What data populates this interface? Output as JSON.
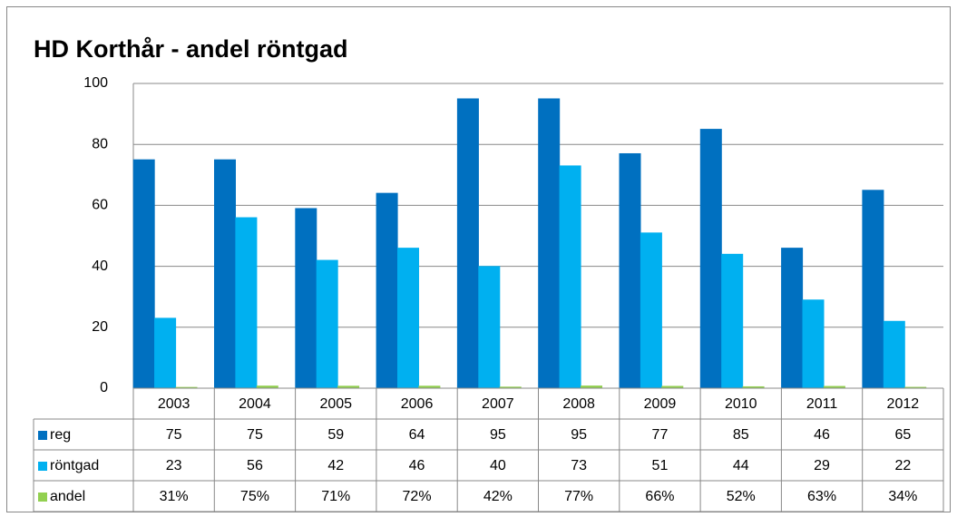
{
  "chart_data": {
    "type": "bar",
    "title": "HD Korthår - andel röntgad",
    "categories": [
      "2003",
      "2004",
      "2005",
      "2006",
      "2007",
      "2008",
      "2009",
      "2010",
      "2011",
      "2012"
    ],
    "series": [
      {
        "name": "reg",
        "color": "#0070c0",
        "values": [
          75,
          75,
          59,
          64,
          95,
          95,
          77,
          85,
          46,
          65
        ]
      },
      {
        "name": "röntgad",
        "color": "#00b0f0",
        "values": [
          23,
          56,
          42,
          46,
          40,
          73,
          51,
          44,
          29,
          22
        ]
      },
      {
        "name": "andel",
        "color": "#92d050",
        "values": [
          0.31,
          0.75,
          0.71,
          0.72,
          0.42,
          0.77,
          0.66,
          0.52,
          0.63,
          0.34
        ],
        "value_labels": [
          "31%",
          "75%",
          "71%",
          "72%",
          "42%",
          "77%",
          "66%",
          "52%",
          "63%",
          "34%"
        ]
      }
    ],
    "ylim": [
      0,
      100
    ],
    "yticks": [
      0,
      20,
      40,
      60,
      80,
      100
    ],
    "grid": true
  }
}
